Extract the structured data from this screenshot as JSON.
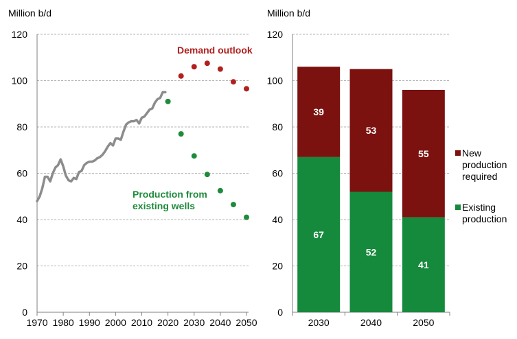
{
  "colors": {
    "demand": "#b0201e",
    "production": "#1e8b3c",
    "history": "#8c8c8c",
    "new_bar": "#7b120f",
    "existing_bar": "#168a3c"
  },
  "chart_data": [
    {
      "type": "line",
      "ylabel": "Million b/d",
      "xlim": [
        1970,
        2050
      ],
      "ylim": [
        0,
        120
      ],
      "xticks": [
        1970,
        1980,
        1990,
        2000,
        2010,
        2020,
        2030,
        2040,
        2050
      ],
      "yticks": [
        0,
        20,
        40,
        60,
        80,
        100,
        120
      ],
      "grid": true,
      "series": [
        {
          "style": "line",
          "x": [
            1970,
            1971,
            1972,
            1973,
            1974,
            1975,
            1976,
            1977,
            1978,
            1979,
            1980,
            1981,
            1982,
            1983,
            1984,
            1985,
            1986,
            1987,
            1988,
            1989,
            1990,
            1991,
            1992,
            1993,
            1994,
            1995,
            1996,
            1997,
            1998,
            1999,
            2000,
            2001,
            2002,
            2003,
            2004,
            2005,
            2006,
            2007,
            2008,
            2009,
            2010,
            2011,
            2012,
            2013,
            2014,
            2015,
            2016,
            2017,
            2018,
            2019
          ],
          "y": [
            48,
            50,
            53.5,
            58.5,
            58.5,
            56.5,
            60,
            62.5,
            63.5,
            66,
            63,
            59,
            57,
            56.5,
            58,
            57.5,
            60.5,
            61,
            63.5,
            64.5,
            65,
            65,
            65.5,
            66.5,
            67,
            68,
            69.5,
            71.5,
            73,
            72,
            75,
            75,
            74.5,
            78,
            81,
            82,
            82.5,
            82.5,
            83,
            81.5,
            84,
            84.5,
            86,
            87.5,
            88,
            90.5,
            92,
            92.5,
            95,
            95
          ]
        },
        {
          "name": "Demand outlook",
          "style": "scatter",
          "x": [
            2025,
            2030,
            2035,
            2040,
            2045,
            2050
          ],
          "y": [
            102,
            106,
            107.5,
            105,
            99.5,
            96.5
          ]
        },
        {
          "name": "Production from existing wells",
          "style": "scatter",
          "x": [
            2020,
            2025,
            2030,
            2035,
            2040,
            2045,
            2050
          ],
          "y": [
            91,
            77,
            67.5,
            59.5,
            52.5,
            46.5,
            41
          ]
        }
      ],
      "annotations": {
        "demand": "Demand outlook",
        "production_line1": "Production from",
        "production_line2": "existing wells"
      }
    },
    {
      "type": "bar",
      "stacked": true,
      "ylabel": "Million b/d",
      "ylim": [
        0,
        120
      ],
      "yticks": [
        0,
        20,
        40,
        60,
        80,
        100,
        120
      ],
      "grid": true,
      "categories": [
        "2030",
        "2040",
        "2050"
      ],
      "series": [
        {
          "name": "Existing production",
          "values": [
            67,
            52,
            41
          ]
        },
        {
          "name": "New production required",
          "values": [
            39,
            53,
            55
          ]
        }
      ],
      "legend": {
        "placement": "right",
        "new_lines": [
          "New",
          "production",
          "required"
        ],
        "existing_lines": [
          "Existing",
          "production"
        ]
      }
    }
  ]
}
